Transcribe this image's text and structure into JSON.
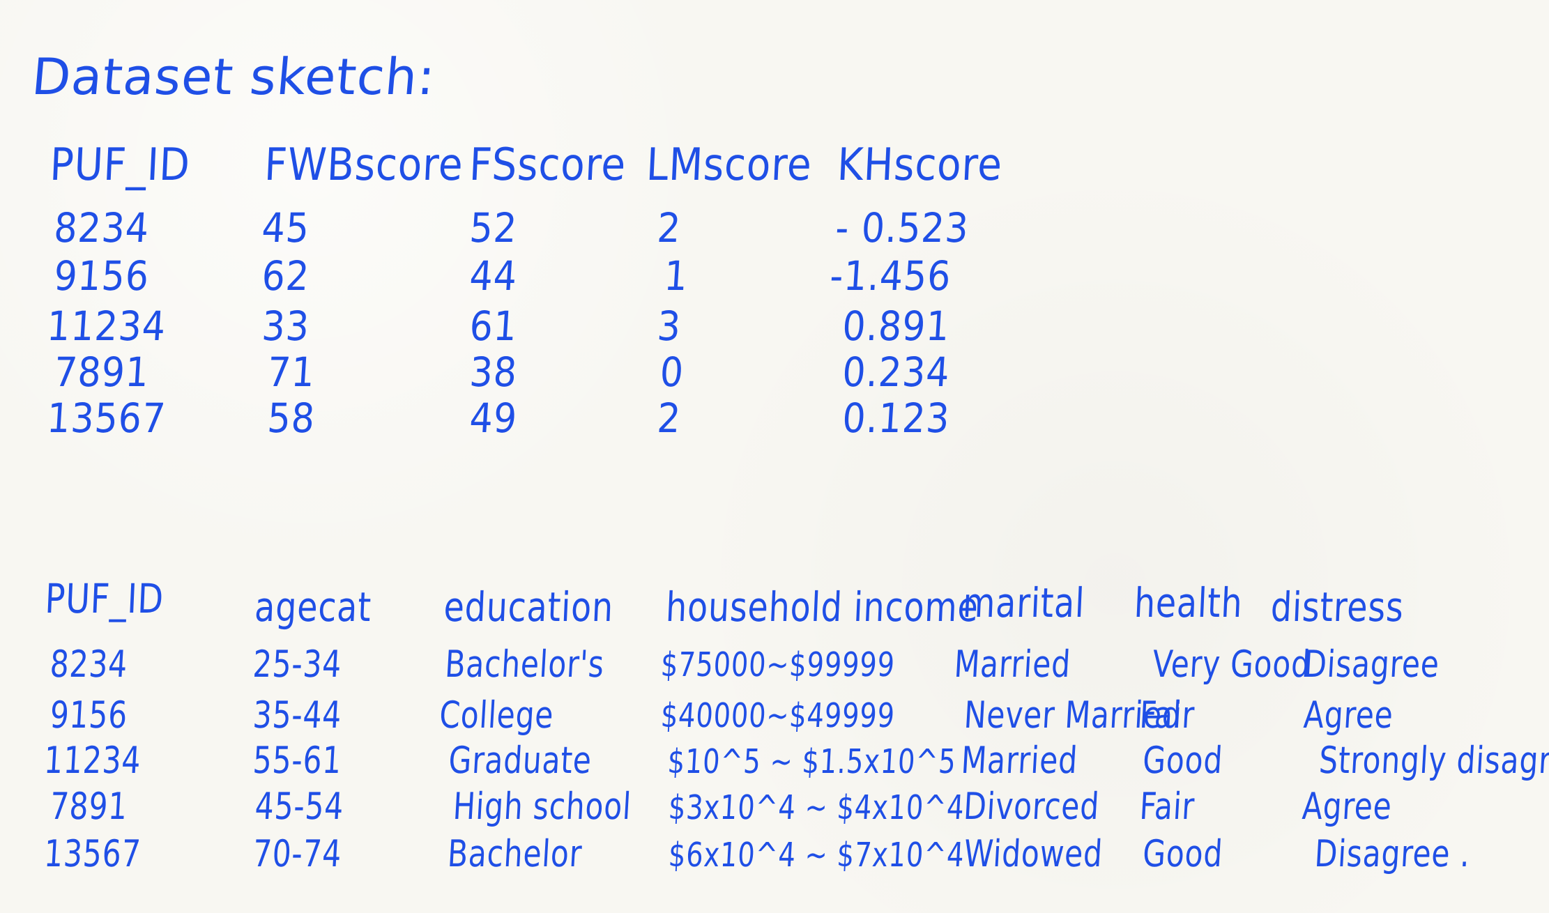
{
  "page": {
    "title": "Dataset sketch:"
  },
  "top_table": {
    "columns": [
      "PUF_ID",
      "FWBscore",
      "FSscore",
      "LMscore",
      "KHscore"
    ],
    "rows": [
      [
        "8234",
        "45",
        "52",
        "2",
        "- 0.523"
      ],
      [
        "9156",
        "62",
        "44",
        "1",
        "-1.456"
      ],
      [
        "11234",
        "33",
        "61",
        "3",
        "0.891"
      ],
      [
        "7891",
        "71",
        "38",
        "0",
        "0.234"
      ],
      [
        "13567",
        "58",
        "49",
        "2",
        "0.123"
      ]
    ]
  },
  "bottom_table": {
    "columns": [
      "PUF_ID",
      "agecat",
      "education",
      "household income",
      "marital",
      "health",
      "distress"
    ],
    "rows": [
      [
        "8234",
        "25-34",
        "Bachelor's",
        "$75000~$99999",
        "Married",
        "Very Good",
        "Disagree"
      ],
      [
        "9156",
        "35-44",
        "College",
        "$40000~$49999",
        "Never Married",
        "Fair",
        "Agree"
      ],
      [
        "11234",
        "55-61",
        "Graduate",
        "$10^5 ~ $1.5x10^5",
        "Married",
        "Good",
        "Strongly disagree"
      ],
      [
        "7891",
        "45-54",
        "High school",
        "$3x10^4 ~ $4x10^4",
        "Divorced",
        "Fair",
        "Agree"
      ],
      [
        "13567",
        "70-74",
        "Bachelor",
        "$6x10^4 ~ $7x10^4",
        "Widowed",
        "Good",
        "Disagree ."
      ]
    ]
  }
}
